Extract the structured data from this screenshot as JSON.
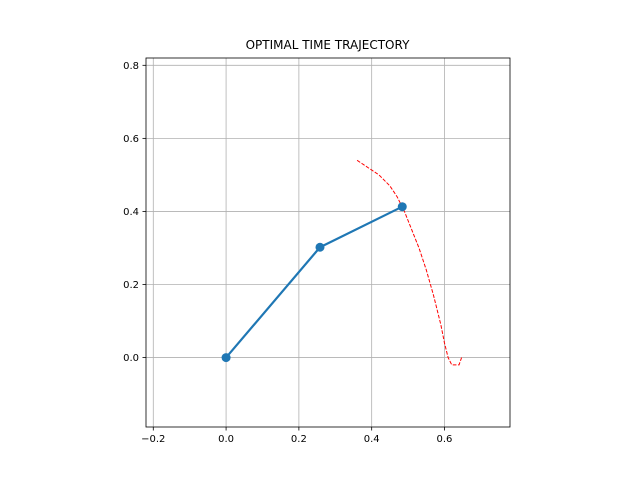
{
  "chart_data": {
    "type": "line",
    "title": "OPTIMAL TIME TRAJECTORY",
    "xlabel": "",
    "ylabel": "",
    "xlim": [
      -0.22,
      0.78
    ],
    "ylim": [
      -0.19,
      0.82
    ],
    "xticks": [
      -0.2,
      0.0,
      0.2,
      0.4,
      0.6
    ],
    "yticks": [
      0.0,
      0.2,
      0.4,
      0.6,
      0.8
    ],
    "xtick_labels": [
      "−0.2",
      "0.0",
      "0.2",
      "0.4",
      "0.6"
    ],
    "ytick_labels": [
      "0.0",
      "0.2",
      "0.4",
      "0.6",
      "0.8"
    ],
    "grid": true,
    "legend": "none",
    "series": [
      {
        "style": "solid-line-with-markers",
        "color": "#1f77b4",
        "x": [
          0.0,
          0.258,
          0.484
        ],
        "y": [
          0.0,
          0.302,
          0.413
        ]
      },
      {
        "style": "dashed",
        "color": "#ff0000",
        "x": [
          0.36,
          0.39,
          0.42,
          0.45,
          0.47,
          0.49,
          0.51,
          0.53,
          0.55,
          0.57,
          0.59,
          0.6,
          0.61,
          0.62,
          0.628,
          0.64,
          0.647
        ],
        "y": [
          0.54,
          0.52,
          0.5,
          0.47,
          0.44,
          0.4,
          0.35,
          0.3,
          0.24,
          0.17,
          0.09,
          0.04,
          0.0,
          -0.02,
          -0.02,
          -0.02,
          0.0
        ]
      }
    ]
  }
}
